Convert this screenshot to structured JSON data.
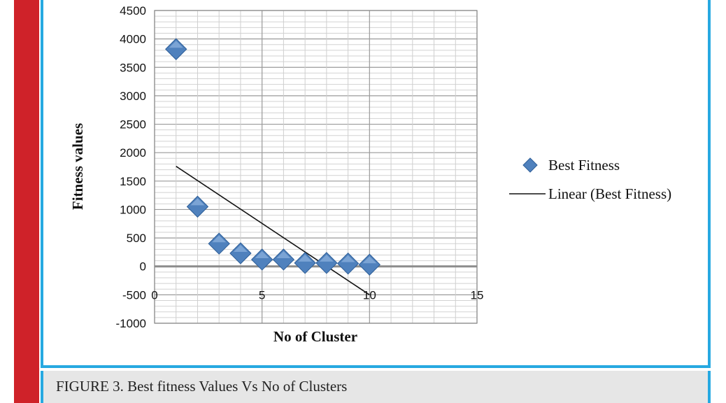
{
  "caption": "FIGURE 3. Best fitness Values Vs No of Clusters",
  "colors": {
    "accent_red": "#cf2229",
    "frame_blue": "#27a9e1",
    "marker_blue": "#4f81bd"
  },
  "chart_data": {
    "type": "scatter",
    "xlabel": "No of Cluster",
    "ylabel": "Fitness values",
    "xlim": [
      0,
      15
    ],
    "ylim": [
      -1000,
      4500
    ],
    "xticks": [
      "0",
      "5",
      "10",
      "15"
    ],
    "yticks": [
      "4500",
      "4000",
      "3500",
      "3000",
      "2500",
      "2000",
      "1500",
      "1000",
      "500",
      "0",
      "-500",
      "-1000"
    ],
    "grid": true,
    "legend_position": "right",
    "series": [
      {
        "name": "Best Fitness",
        "marker": "diamond",
        "x": [
          1,
          2,
          3,
          4,
          5,
          6,
          7,
          8,
          9,
          10
        ],
        "y": [
          3820,
          1050,
          400,
          230,
          120,
          120,
          60,
          60,
          50,
          30
        ]
      }
    ],
    "trendline": {
      "name": "Linear (Best Fitness)",
      "x": [
        1,
        10
      ],
      "y": [
        1760,
        -500
      ]
    }
  }
}
